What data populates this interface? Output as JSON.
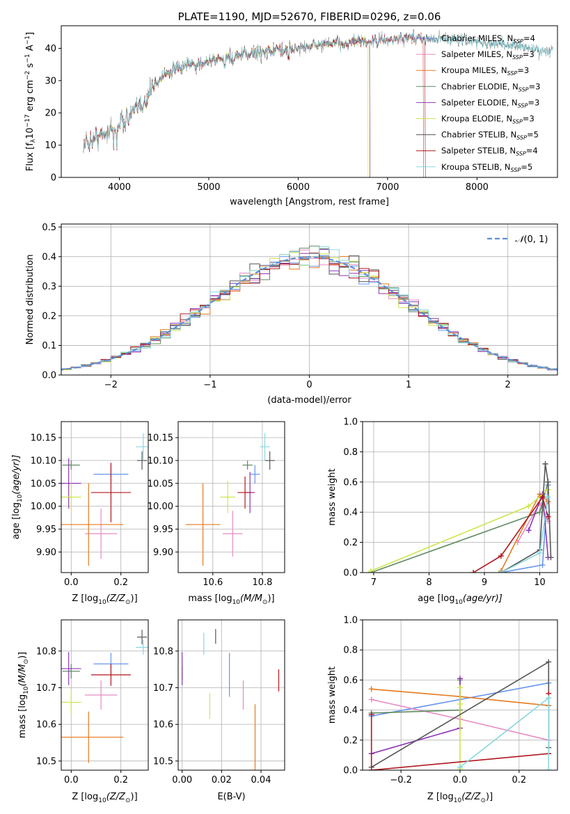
{
  "colors": {
    "chabrier_miles": "#6495ed",
    "salpeter_miles": "#e78ac3",
    "kroupa_miles": "#e6791e",
    "chabrier_elodie": "#5f8a62",
    "salpeter_elodie": "#8e35b5",
    "kroupa_elodie": "#cde54c",
    "chabrier_stelib": "#555555",
    "salpeter_stelib": "#b0161d",
    "kroupa_stelib": "#88d8e0",
    "gaussian": "#5a8fd6",
    "data": "#aaaaaa"
  },
  "chart_data": [
    {
      "id": "spectrum",
      "type": "line",
      "title": "PLATE=1190, MJD=52670, FIBERID=0296, z=0.06",
      "xlabel": "wavelength [Angstrom, rest frame]",
      "ylabel": "Flux [f",
      "ylabel_tail": "10",
      "ylabel_units": "erg cm",
      "xlim": [
        3350,
        8900
      ],
      "ylim": [
        0,
        47
      ],
      "xticks": [
        4000,
        5000,
        6000,
        7000,
        8000
      ],
      "yticks": [
        0,
        10,
        20,
        30,
        40
      ],
      "grid": false,
      "legend_position": "right",
      "continuum": {
        "x": [
          3600,
          3700,
          3800,
          3900,
          4000,
          4100,
          4200,
          4300,
          4400,
          4500,
          4600,
          4700,
          4800,
          5000,
          5200,
          5400,
          5600,
          5800,
          6000,
          6200,
          6400,
          6600,
          6800,
          7000,
          7200,
          7400,
          7600,
          7800,
          8000,
          8200,
          8400,
          8600,
          8800
        ],
        "y": [
          10,
          12,
          13,
          15,
          17,
          19,
          21,
          25,
          29,
          32,
          33,
          34,
          35,
          36,
          37,
          38,
          39,
          39.5,
          40,
          41,
          41.5,
          42,
          42,
          42.5,
          43,
          43,
          43,
          42.5,
          42,
          41.5,
          41,
          40,
          39
        ]
      },
      "series": [
        {
          "name": "Chabrier MILES, N",
          "n": "4",
          "key": "chabrier_miles",
          "xmax": 7400
        },
        {
          "name": "Salpeter MILES, N",
          "n": "3",
          "key": "salpeter_miles",
          "xmax": 7400
        },
        {
          "name": "Kroupa MILES, N",
          "n": "3",
          "key": "kroupa_miles",
          "xmax": 7400
        },
        {
          "name": "Chabrier ELODIE, N",
          "n": "3",
          "key": "chabrier_elodie",
          "xmax": 6800
        },
        {
          "name": "Salpeter ELODIE, N",
          "n": "3",
          "key": "salpeter_elodie",
          "xmax": 6800
        },
        {
          "name": "Kroupa ELODIE, N",
          "n": "3",
          "key": "kroupa_elodie",
          "xmax": 6780
        },
        {
          "name": "Chabrier STELIB, N",
          "n": "5",
          "key": "chabrier_stelib",
          "xmax": 8850
        },
        {
          "name": "Salpeter STELIB, N",
          "n": "4",
          "key": "salpeter_stelib",
          "xmax": 7420
        },
        {
          "name": "Kroupa STELIB, N",
          "n": "5",
          "key": "kroupa_stelib",
          "xmax": 8850
        }
      ]
    },
    {
      "id": "residuals",
      "type": "line",
      "xlabel": "(data-model)/error",
      "ylabel": "Normed distribution",
      "xlim": [
        -2.5,
        2.5
      ],
      "ylim": [
        0,
        0.51
      ],
      "xticks": [
        -2,
        -1,
        0,
        1,
        2
      ],
      "yticks": [
        0.0,
        0.1,
        0.2,
        0.3,
        0.4,
        0.5
      ],
      "grid": true,
      "legend_position": "top-right",
      "legend_label": "N(0,1)",
      "bin_width": 0.1
    },
    {
      "id": "age_vs_Z",
      "type": "scatter",
      "xlabel": "Z [log",
      "xlabel_sub": "10",
      "xlabel_tail": "(Z/Z",
      "ylabel": "age  [log",
      "ylabel_sub": "10",
      "ylabel_tail": "(age/yr)]",
      "xlim": [
        -0.04,
        0.31
      ],
      "ylim": [
        9.855,
        10.185
      ],
      "xticks": [
        0.0,
        0.2
      ],
      "yticks": [
        9.9,
        9.95,
        10.0,
        10.05,
        10.1,
        10.15
      ],
      "grid": true,
      "points": [
        {
          "key": "chabrier_miles",
          "x": 0.16,
          "y": 10.07,
          "xerr": 0.07,
          "yerr": 0.02
        },
        {
          "key": "salpeter_miles",
          "x": 0.12,
          "y": 9.94,
          "xerr": 0.065,
          "yerr": 0.055
        },
        {
          "key": "kroupa_miles",
          "x": 0.07,
          "y": 9.96,
          "xerr": 0.14,
          "yerr": 0.09
        },
        {
          "key": "chabrier_elodie",
          "x": 0.0,
          "y": 10.09,
          "xerr": 0.035,
          "yerr": 0.01
        },
        {
          "key": "salpeter_elodie",
          "x": -0.01,
          "y": 10.05,
          "xerr": 0.05,
          "yerr": 0.055
        },
        {
          "key": "kroupa_elodie",
          "x": 0.0,
          "y": 10.02,
          "xerr": 0.04,
          "yerr": 0.03
        },
        {
          "key": "chabrier_stelib",
          "x": 0.285,
          "y": 10.1,
          "xerr": 0.02,
          "yerr": 0.02
        },
        {
          "key": "salpeter_stelib",
          "x": 0.16,
          "y": 10.03,
          "xerr": 0.08,
          "yerr": 0.065
        },
        {
          "key": "kroupa_stelib",
          "x": 0.29,
          "y": 10.13,
          "xerr": 0.03,
          "yerr": 0.03
        }
      ]
    },
    {
      "id": "age_vs_mass",
      "type": "scatter",
      "xlabel": "mass [log",
      "xlabel_sub": "10",
      "xlabel_tail": "(M/M",
      "xlim": [
        10.46,
        10.89
      ],
      "ylim": [
        9.855,
        10.185
      ],
      "xticks": [
        10.6,
        10.8
      ],
      "yticks": [
        9.9,
        9.95,
        10.0,
        10.05,
        10.1,
        10.15
      ],
      "grid": true,
      "points": [
        {
          "key": "chabrier_miles",
          "x": 10.77,
          "y": 10.07,
          "xerr": 0.02,
          "yerr": 0.02
        },
        {
          "key": "salpeter_miles",
          "x": 10.68,
          "y": 9.94,
          "xerr": 0.04,
          "yerr": 0.05
        },
        {
          "key": "kroupa_miles",
          "x": 10.56,
          "y": 9.96,
          "xerr": 0.07,
          "yerr": 0.09
        },
        {
          "key": "chabrier_elodie",
          "x": 10.74,
          "y": 10.09,
          "xerr": 0.02,
          "yerr": 0.01
        },
        {
          "key": "salpeter_elodie",
          "x": 10.75,
          "y": 10.03,
          "xerr": 0.02,
          "yerr": 0.045
        },
        {
          "key": "kroupa_elodie",
          "x": 10.66,
          "y": 10.02,
          "xerr": 0.03,
          "yerr": 0.035
        },
        {
          "key": "chabrier_stelib",
          "x": 10.83,
          "y": 10.1,
          "xerr": 0.02,
          "yerr": 0.02
        },
        {
          "key": "salpeter_stelib",
          "x": 10.73,
          "y": 10.03,
          "xerr": 0.03,
          "yerr": 0.035
        },
        {
          "key": "kroupa_stelib",
          "x": 10.81,
          "y": 10.13,
          "xerr": 0.02,
          "yerr": 0.03
        }
      ]
    },
    {
      "id": "weight_vs_age",
      "type": "line",
      "xlabel": "age  [log",
      "xlabel_sub": "10",
      "xlabel_tail": "(age/yr)]",
      "ylabel": "mass weight",
      "xlim": [
        6.8,
        10.32
      ],
      "ylim": [
        0,
        1
      ],
      "xticks": [
        7,
        8,
        9,
        10
      ],
      "yticks": [
        0.0,
        0.2,
        0.4,
        0.6,
        0.8,
        1.0
      ],
      "grid": true,
      "series": [
        {
          "key": "chabrier_miles",
          "x": [
            9.3,
            10.05,
            10.15
          ],
          "y": [
            0.0,
            0.05,
            0.58
          ]
        },
        {
          "key": "salpeter_miles",
          "x": [
            9.6,
            10.0,
            10.15
          ],
          "y": [
            0.2,
            0.46,
            0.34
          ]
        },
        {
          "key": "kroupa_miles",
          "x": [
            9.3,
            10.0,
            10.15
          ],
          "y": [
            0.01,
            0.52,
            0.47
          ]
        },
        {
          "key": "chabrier_elodie",
          "x": [
            6.95,
            10.0,
            10.15
          ],
          "y": [
            0.0,
            0.4,
            0.6
          ]
        },
        {
          "key": "salpeter_elodie",
          "x": [
            9.8,
            10.05,
            10.15
          ],
          "y": [
            0.28,
            0.52,
            0.1
          ]
        },
        {
          "key": "kroupa_elodie",
          "x": [
            6.95,
            9.8,
            10.15
          ],
          "y": [
            0.01,
            0.44,
            0.55
          ]
        },
        {
          "key": "chabrier_stelib",
          "x": [
            9.3,
            10.0,
            10.1,
            10.15,
            10.2
          ],
          "y": [
            0.0,
            0.15,
            0.72,
            0.6,
            0.1
          ]
        },
        {
          "key": "salpeter_stelib",
          "x": [
            8.8,
            9.3,
            10.05,
            10.15
          ],
          "y": [
            0.0,
            0.11,
            0.5,
            0.37
          ]
        },
        {
          "key": "kroupa_stelib",
          "x": [
            9.3,
            10.0,
            10.15
          ],
          "y": [
            0.0,
            0.13,
            0.5
          ]
        }
      ]
    },
    {
      "id": "mass_vs_Z",
      "type": "scatter",
      "xlabel": "Z [log",
      "xlabel_sub": "10",
      "xlabel_tail": "(Z/Z",
      "ylabel": "mass [log",
      "ylabel_sub": "10",
      "ylabel_tail": "(M/M",
      "xlim": [
        -0.04,
        0.31
      ],
      "ylim": [
        10.475,
        10.885
      ],
      "xticks": [
        0.0,
        0.2
      ],
      "yticks": [
        10.5,
        10.6,
        10.7,
        10.8
      ],
      "grid": true,
      "points": [
        {
          "key": "chabrier_miles",
          "x": 0.16,
          "y": 10.765,
          "xerr": 0.07,
          "yerr": 0.03
        },
        {
          "key": "salpeter_miles",
          "x": 0.12,
          "y": 10.68,
          "xerr": 0.065,
          "yerr": 0.04
        },
        {
          "key": "kroupa_miles",
          "x": 0.07,
          "y": 10.565,
          "xerr": 0.14,
          "yerr": 0.07
        },
        {
          "key": "chabrier_elodie",
          "x": 0.0,
          "y": 10.745,
          "xerr": 0.035,
          "yerr": 0.02
        },
        {
          "key": "salpeter_elodie",
          "x": -0.01,
          "y": 10.752,
          "xerr": 0.05,
          "yerr": 0.045
        },
        {
          "key": "kroupa_elodie",
          "x": 0.0,
          "y": 10.66,
          "xerr": 0.04,
          "yerr": 0.035
        },
        {
          "key": "chabrier_stelib",
          "x": 0.285,
          "y": 10.838,
          "xerr": 0.02,
          "yerr": 0.02
        },
        {
          "key": "salpeter_stelib",
          "x": 0.16,
          "y": 10.735,
          "xerr": 0.08,
          "yerr": 0.03
        },
        {
          "key": "kroupa_stelib",
          "x": 0.29,
          "y": 10.81,
          "xerr": 0.03,
          "yerr": 0.02
        }
      ]
    },
    {
      "id": "mass_vs_ebv",
      "type": "scatter",
      "xlabel": "E(B-V)",
      "xlim": [
        -0.002,
        0.052
      ],
      "ylim": [
        10.475,
        10.885
      ],
      "xticks": [
        0.0,
        0.02,
        0.04
      ],
      "yticks": [
        10.5,
        10.6,
        10.7,
        10.8
      ],
      "grid": true,
      "points": [
        {
          "key": "chabrier_miles",
          "x": 0.024,
          "y": 10.735,
          "xerr": 0.0,
          "yerr": 0.06
        },
        {
          "key": "salpeter_miles",
          "x": 0.031,
          "y": 10.68,
          "xerr": 0.0,
          "yerr": 0.04
        },
        {
          "key": "kroupa_miles",
          "x": 0.037,
          "y": 10.545,
          "xerr": 0.0,
          "yerr": 0.11
        },
        {
          "key": "chabrier_elodie",
          "x": 0.0,
          "y": 10.74,
          "xerr": 0.0,
          "yerr": 0.02
        },
        {
          "key": "salpeter_elodie",
          "x": 0.0,
          "y": 10.752,
          "xerr": 0.0,
          "yerr": 0.045
        },
        {
          "key": "kroupa_elodie",
          "x": 0.014,
          "y": 10.65,
          "xerr": 0.0,
          "yerr": 0.035
        },
        {
          "key": "chabrier_stelib",
          "x": 0.017,
          "y": 10.84,
          "xerr": 0.0,
          "yerr": 0.02
        },
        {
          "key": "salpeter_stelib",
          "x": 0.049,
          "y": 10.72,
          "xerr": 0.0,
          "yerr": 0.03
        },
        {
          "key": "kroupa_stelib",
          "x": 0.011,
          "y": 10.82,
          "xerr": 0.0,
          "yerr": 0.03
        }
      ]
    },
    {
      "id": "weight_vs_Z",
      "type": "line",
      "xlabel": "Z [log",
      "xlabel_sub": "10",
      "xlabel_tail": "(Z/Z",
      "ylabel": "mass weight",
      "xlim": [
        -0.33,
        0.33
      ],
      "ylim": [
        0,
        1
      ],
      "xticks": [
        -0.2,
        0.0,
        0.2
      ],
      "yticks": [
        0.0,
        0.2,
        0.4,
        0.6,
        0.8,
        1.0
      ],
      "grid": true,
      "series": [
        {
          "key": "chabrier_miles",
          "x": [
            -0.3,
            0.3
          ],
          "y": [
            0.36,
            0.58
          ]
        },
        {
          "key": "salpeter_miles",
          "x": [
            -0.3,
            0.0,
            0.3
          ],
          "y": [
            0.47,
            0.34,
            0.2
          ]
        },
        {
          "key": "kroupa_miles",
          "x": [
            -0.3,
            0.0,
            0.3
          ],
          "y": [
            0.54,
            0.49,
            0.43
          ]
        },
        {
          "key": "chabrier_elodie",
          "x": [
            -0.3,
            0.0,
            0.0
          ],
          "y": [
            0.38,
            0.4,
            0.6
          ]
        },
        {
          "key": "salpeter_elodie",
          "x": [
            -0.3,
            0.0,
            0.0
          ],
          "y": [
            0.11,
            0.28,
            0.61
          ]
        },
        {
          "key": "kroupa_elodie",
          "x": [
            0.0,
            0.0,
            0.0
          ],
          "y": [
            0.01,
            0.44,
            0.55
          ]
        },
        {
          "key": "chabrier_stelib",
          "x": [
            -0.3,
            0.3,
            0.3
          ],
          "y": [
            0.02,
            0.72,
            0.15
          ]
        },
        {
          "key": "salpeter_stelib",
          "x": [
            -0.3,
            -0.3,
            0.3,
            0.3
          ],
          "y": [
            0.37,
            0.0,
            0.11,
            0.51
          ]
        },
        {
          "key": "kroupa_stelib",
          "x": [
            0.0,
            0.3,
            0.3
          ],
          "y": [
            0.02,
            0.48,
            0.0
          ]
        }
      ]
    }
  ]
}
